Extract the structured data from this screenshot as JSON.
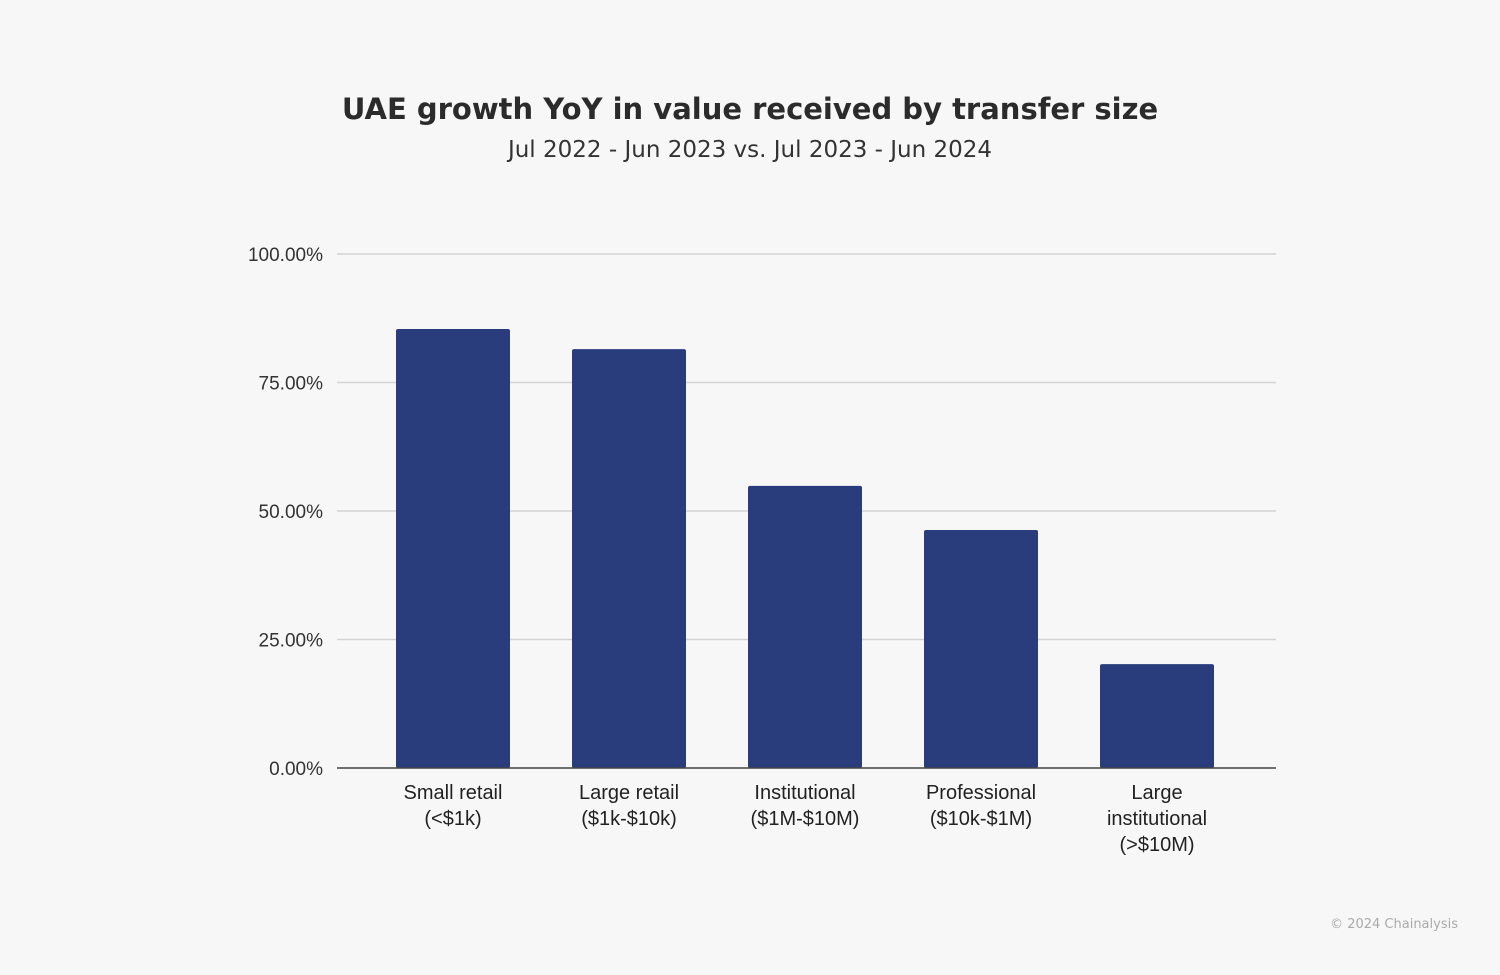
{
  "chart_data": {
    "type": "bar",
    "title": "UAE growth YoY in value received by transfer size",
    "subtitle": "Jul 2022 - Jun 2023 vs. Jul 2023 - Jun 2024",
    "categories": [
      [
        "Small retail",
        "(<$1k)"
      ],
      [
        "Large retail",
        "($1k-$10k)"
      ],
      [
        "Institutional",
        "($1M-$10M)"
      ],
      [
        "Professional",
        "($10k-$1M)"
      ],
      [
        "Large",
        "institutional",
        "(>$10M)"
      ]
    ],
    "values": [
      85.4,
      81.5,
      54.9,
      46.3,
      20.2
    ],
    "ylim": [
      0,
      100
    ],
    "yticks": [
      "0.00%",
      "25.00%",
      "50.00%",
      "75.00%",
      "100.00%"
    ],
    "grid": true,
    "bar_color": "#293d7c",
    "xlabel": "",
    "ylabel": ""
  },
  "footer": "© 2024 Chainalysis"
}
